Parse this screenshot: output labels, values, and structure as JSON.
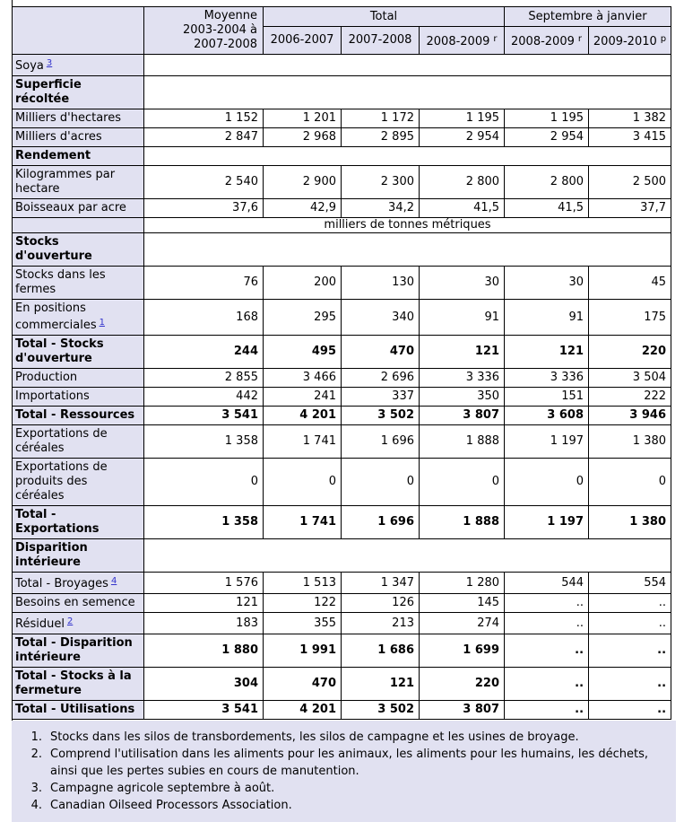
{
  "colors": {
    "header_bg": "#e1e1f1",
    "row_label_bg": "#e1e1f1",
    "data_bg": "#ffffff",
    "border": "#000000",
    "footnote_bg": "#e1e1f1",
    "footnote_link_blue": "#3333cc",
    "text": "#000000"
  },
  "table": {
    "header": {
      "corner_label": "",
      "moyenne_label": "Moyenne\n2003-2004 à\n2007-2008",
      "total_group_label": "Total",
      "september_group_label": "Septembre à janvier",
      "year_columns": [
        {
          "label": "2006-2007",
          "sup": ""
        },
        {
          "label": "2007-2008",
          "sup": ""
        },
        {
          "label": "2008-2009",
          "sup": "r"
        },
        {
          "label": "2008-2009",
          "sup": "r"
        },
        {
          "label": "2009-2010",
          "sup": "p"
        }
      ]
    },
    "rows": [
      {
        "type": "section",
        "label": "Soya",
        "sup": "3",
        "bold": false
      },
      {
        "type": "section",
        "label": "Superficie\nrécoltée",
        "bold": true
      },
      {
        "type": "data",
        "label": "Milliers d'hectares",
        "values": [
          "1 152",
          "1 201",
          "1 172",
          "1 195",
          "1 195",
          "1 382"
        ]
      },
      {
        "type": "data",
        "label": "Milliers d'acres",
        "values": [
          "2 847",
          "2 968",
          "2 895",
          "2 954",
          "2 954",
          "3 415"
        ]
      },
      {
        "type": "section",
        "label": "Rendement",
        "bold": true
      },
      {
        "type": "data",
        "label": "Kilogrammes par\nhectare",
        "values": [
          "2 540",
          "2 900",
          "2 300",
          "2 800",
          "2 800",
          "2 500"
        ]
      },
      {
        "type": "data",
        "label": "Boisseaux par acre",
        "values": [
          "37,6",
          "42,9",
          "34,2",
          "41,5",
          "41,5",
          "37,7"
        ]
      },
      {
        "type": "unit",
        "text": "milliers de tonnes métriques"
      },
      {
        "type": "section",
        "label": "Stocks\nd'ouverture",
        "bold": true
      },
      {
        "type": "data",
        "label": "Stocks dans les\nfermes",
        "values": [
          "76",
          "200",
          "130",
          "30",
          "30",
          "45"
        ]
      },
      {
        "type": "data",
        "label": "En positions\ncommerciales",
        "sup": "1",
        "values": [
          "168",
          "295",
          "340",
          "91",
          "91",
          "175"
        ]
      },
      {
        "type": "data",
        "label": "Total - Stocks\nd'ouverture",
        "bold": true,
        "values": [
          "244",
          "495",
          "470",
          "121",
          "121",
          "220"
        ]
      },
      {
        "type": "data",
        "label": "Production",
        "values": [
          "2 855",
          "3 466",
          "2 696",
          "3 336",
          "3 336",
          "3 504"
        ]
      },
      {
        "type": "data",
        "label": "Importations",
        "values": [
          "442",
          "241",
          "337",
          "350",
          "151",
          "222"
        ]
      },
      {
        "type": "data",
        "label": "Total - Ressources",
        "bold": true,
        "values": [
          "3 541",
          "4 201",
          "3 502",
          "3 807",
          "3 608",
          "3 946"
        ]
      },
      {
        "type": "data",
        "label": "Exportations de\ncéréales",
        "values": [
          "1 358",
          "1 741",
          "1 696",
          "1 888",
          "1 197",
          "1 380"
        ]
      },
      {
        "type": "data",
        "label": "Exportations de\nproduits des\ncéréales",
        "values": [
          "0",
          "0",
          "0",
          "0",
          "0",
          "0"
        ]
      },
      {
        "type": "data",
        "label": "Total -\nExportations",
        "bold": true,
        "values": [
          "1 358",
          "1 741",
          "1 696",
          "1 888",
          "1 197",
          "1 380"
        ]
      },
      {
        "type": "section",
        "label": "Disparition\nintérieure",
        "bold": true
      },
      {
        "type": "data",
        "label": "Total - Broyages",
        "sup": "4",
        "values": [
          "1 576",
          "1 513",
          "1 347",
          "1 280",
          "544",
          "554"
        ]
      },
      {
        "type": "data",
        "label": "Besoins en semence",
        "values": [
          "121",
          "122",
          "126",
          "145",
          "..",
          ".."
        ]
      },
      {
        "type": "data",
        "label": "Résiduel",
        "sup": "2",
        "values": [
          "183",
          "355",
          "213",
          "274",
          "..",
          ".."
        ]
      },
      {
        "type": "data",
        "label": "Total - Disparition\nintérieure",
        "bold": true,
        "values": [
          "1 880",
          "1 991",
          "1 686",
          "1 699",
          "..",
          ".."
        ]
      },
      {
        "type": "data",
        "label": "Total - Stocks à la\nfermeture",
        "bold": true,
        "values": [
          "304",
          "470",
          "121",
          "220",
          "..",
          ".."
        ]
      },
      {
        "type": "data",
        "label": "Total - Utilisations",
        "bold": true,
        "values": [
          "3 541",
          "4 201",
          "3 502",
          "3 807",
          "..",
          ".."
        ]
      }
    ]
  },
  "footnotes": [
    {
      "num": "1.",
      "text": "Stocks dans les silos de transbordements, les silos de campagne et les usines de broyage."
    },
    {
      "num": "2.",
      "text": "Comprend l'utilisation dans les aliments pour les animaux, les aliments pour les humains, les déchets, ainsi que les pertes subies en cours de manutention."
    },
    {
      "num": "3.",
      "text": "Campagne agricole septembre à août."
    },
    {
      "num": "4.",
      "text": "Canadian Oilseed Processors Association."
    }
  ]
}
